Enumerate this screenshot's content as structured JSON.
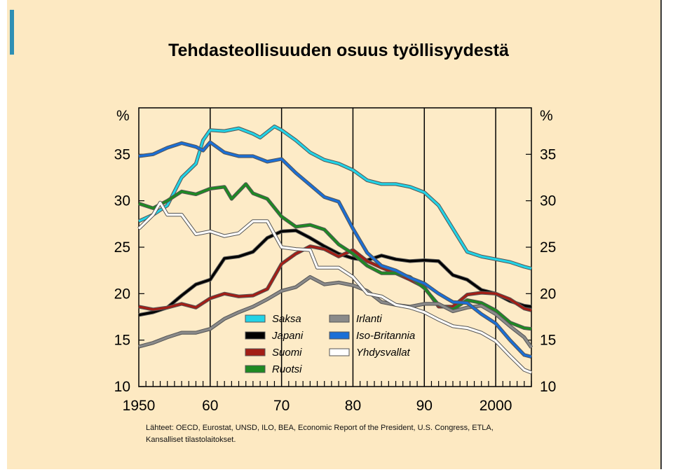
{
  "title": "Tehdasteollisuuden osuus työllisyydestä",
  "sources_line1": "Lähteet:   OECD, Eurostat, UNSD, ILO, BEA, Economic Report of the President, U.S. Congress, ETLA,",
  "sources_line2": "Kansalliset tilastolaitokset.",
  "chart_data": {
    "type": "line",
    "title": "Tehdasteollisuuden osuus työllisyydestä",
    "y_unit_left": "%",
    "y_unit_right": "%",
    "xlim": [
      1950,
      2005
    ],
    "ylim": [
      10,
      40
    ],
    "x_ticks": [
      1950,
      1960,
      1970,
      1980,
      1990,
      2000
    ],
    "x_tick_labels": [
      "1950",
      "60",
      "70",
      "80",
      "90",
      "2000"
    ],
    "y_ticks": [
      10,
      15,
      20,
      25,
      30,
      35
    ],
    "y_tick_labels": [
      "10",
      "15",
      "20",
      "25",
      "30",
      "35"
    ],
    "legend_position": "bottom-center (inside plot)",
    "series": [
      {
        "name": "Saksa",
        "color": "#22d3e6",
        "x": [
          1950,
          1952,
          1954,
          1956,
          1958,
          1959,
          1960,
          1962,
          1964,
          1966,
          1967,
          1969,
          1970,
          1972,
          1974,
          1976,
          1978,
          1980,
          1982,
          1984,
          1986,
          1988,
          1990,
          1992,
          1994,
          1996,
          1998,
          2000,
          2002,
          2004,
          2005
        ],
        "y": [
          27.8,
          28.5,
          29.5,
          32.5,
          34,
          36.5,
          37.6,
          37.5,
          37.8,
          37.2,
          36.8,
          38,
          37.6,
          36.5,
          35.2,
          34.4,
          34,
          33.3,
          32.2,
          31.8,
          31.8,
          31.5,
          30.9,
          29.5,
          27,
          24.5,
          24,
          23.7,
          23.4,
          22.9,
          22.7
        ]
      },
      {
        "name": "Japani",
        "color": "#000000",
        "x": [
          1950,
          1952,
          1954,
          1956,
          1958,
          1960,
          1962,
          1964,
          1966,
          1968,
          1970,
          1972,
          1974,
          1976,
          1978,
          1980,
          1982,
          1984,
          1986,
          1988,
          1990,
          1992,
          1994,
          1996,
          1998,
          2000,
          2002,
          2004,
          2005
        ],
        "y": [
          17.7,
          18,
          18.5,
          19.8,
          21,
          21.5,
          23.8,
          24,
          24.5,
          26,
          26.7,
          26.8,
          26,
          25.1,
          24.3,
          23.8,
          23.6,
          24.1,
          23.7,
          23.5,
          23.6,
          23.5,
          22,
          21.5,
          20.4,
          20,
          19.2,
          18.7,
          18.6
        ]
      },
      {
        "name": "Suomi",
        "color": "#a31e16",
        "x": [
          1950,
          1952,
          1954,
          1956,
          1958,
          1960,
          1962,
          1964,
          1966,
          1968,
          1970,
          1972,
          1974,
          1976,
          1978,
          1980,
          1982,
          1984,
          1986,
          1988,
          1990,
          1992,
          1994,
          1996,
          1998,
          2000,
          2002,
          2004,
          2005
        ],
        "y": [
          18.6,
          18.3,
          18.5,
          18.9,
          18.5,
          19.5,
          20,
          19.7,
          19.8,
          20.5,
          23.2,
          24.3,
          25.1,
          24.8,
          24,
          24.7,
          23.5,
          22.8,
          22.2,
          21.5,
          20.7,
          18.6,
          18.6,
          19.9,
          20.1,
          20,
          19.4,
          18.4,
          18.2
        ]
      },
      {
        "name": "Ruotsi",
        "color": "#1e8a23",
        "x": [
          1950,
          1952,
          1954,
          1956,
          1958,
          1960,
          1962,
          1963,
          1965,
          1966,
          1968,
          1970,
          1972,
          1974,
          1976,
          1978,
          1980,
          1982,
          1984,
          1986,
          1988,
          1990,
          1992,
          1994,
          1996,
          1998,
          2000,
          2002,
          2004,
          2005
        ],
        "y": [
          29.7,
          29.2,
          30,
          31,
          30.7,
          31.3,
          31.5,
          30.2,
          31.8,
          30.8,
          30.2,
          28.3,
          27.2,
          27.4,
          26.9,
          25.3,
          24.3,
          23,
          22.2,
          22.2,
          21.8,
          20.6,
          18.8,
          18.3,
          19.3,
          19,
          18.2,
          16.9,
          16.3,
          16.2
        ]
      },
      {
        "name": "Irlanti",
        "color": "#8a8a8a",
        "x": [
          1950,
          1952,
          1954,
          1956,
          1958,
          1960,
          1962,
          1964,
          1966,
          1968,
          1970,
          1972,
          1974,
          1976,
          1978,
          1980,
          1982,
          1984,
          1986,
          1988,
          1990,
          1992,
          1994,
          1996,
          1998,
          2000,
          2002,
          2004,
          2005
        ],
        "y": [
          14.3,
          14.7,
          15.3,
          15.8,
          15.8,
          16.2,
          17.3,
          18,
          18.6,
          19.4,
          20.3,
          20.7,
          21.8,
          21,
          21.2,
          20.9,
          20.3,
          19.1,
          18.8,
          18.6,
          18.9,
          18.9,
          18.1,
          18.5,
          18.7,
          17.8,
          16.5,
          15.3,
          14.2
        ]
      },
      {
        "name": "Iso-Britannia",
        "color": "#1b6fd6",
        "x": [
          1950,
          1952,
          1954,
          1956,
          1958,
          1959,
          1960,
          1962,
          1964,
          1966,
          1968,
          1970,
          1972,
          1974,
          1976,
          1978,
          1980,
          1982,
          1984,
          1986,
          1988,
          1990,
          1992,
          1994,
          1996,
          1998,
          2000,
          2002,
          2004,
          2005
        ],
        "y": [
          34.8,
          35,
          35.7,
          36.2,
          35.8,
          35.4,
          36.3,
          35.2,
          34.8,
          34.8,
          34.2,
          34.5,
          33,
          31.7,
          30.4,
          29.9,
          27,
          24.4,
          23,
          22.5,
          21.7,
          21.1,
          20,
          19.1,
          19,
          17.8,
          16.8,
          15,
          13.4,
          13.2
        ]
      },
      {
        "name": "Yhdysvallat",
        "color": "#ffffff",
        "x": [
          1950,
          1952,
          1953,
          1954,
          1956,
          1958,
          1960,
          1962,
          1964,
          1966,
          1968,
          1970,
          1972,
          1974,
          1975,
          1978,
          1980,
          1982,
          1984,
          1986,
          1988,
          1990,
          1992,
          1994,
          1996,
          1998,
          2000,
          2002,
          2004,
          2005
        ],
        "y": [
          27,
          28.5,
          29.8,
          28.5,
          28.5,
          26.4,
          26.7,
          26.2,
          26.5,
          27.8,
          27.8,
          25,
          24.8,
          24.7,
          22.8,
          22.8,
          21.8,
          20,
          19.7,
          18.8,
          18.5,
          18,
          17.2,
          16.5,
          16.3,
          15.8,
          14.9,
          13.3,
          11.8,
          11.5
        ]
      }
    ]
  }
}
